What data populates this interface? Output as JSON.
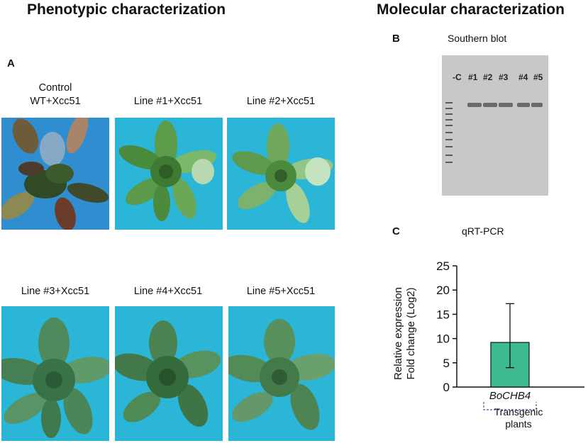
{
  "headers": {
    "left": "Phenotypic characterization",
    "right": "Molecular characterization"
  },
  "panel_a": {
    "letter": "A",
    "photos": [
      {
        "caption_line1": "Control",
        "caption_line2": "WT+Xcc51",
        "state": "diseased"
      },
      {
        "caption_line1": "Line #1+Xcc51",
        "state": "healthy"
      },
      {
        "caption_line1": "Line #2+Xcc51",
        "state": "healthy"
      },
      {
        "caption_line1": "Line #3+Xcc51",
        "state": "healthy"
      },
      {
        "caption_line1": "Line #4+Xcc51",
        "state": "healthy"
      },
      {
        "caption_line1": "Line #5+Xcc51",
        "state": "healthy"
      }
    ]
  },
  "panel_b": {
    "letter": "B",
    "title": "Southern blot",
    "lanes": [
      "-C",
      "#1",
      "#2",
      "#3",
      "#4",
      "#5"
    ]
  },
  "panel_c": {
    "letter": "C",
    "title": "qRT-PCR",
    "bar_color": "#3dbb8f",
    "group_label_1": "Transgenic",
    "group_label_2": "plants"
  },
  "chart_data": {
    "type": "bar",
    "title": "qRT-PCR",
    "categories": [
      "BoCHB4"
    ],
    "values": [
      9.2
    ],
    "error": [
      [
        4.0,
        17.2
      ]
    ],
    "ylabel_line1": "Relative expression",
    "ylabel_line2": "Fold change (Log2)",
    "ylim": [
      0,
      25
    ],
    "yticks": [
      "0",
      "5",
      "10",
      "15",
      "20",
      "25"
    ],
    "grid": false
  }
}
